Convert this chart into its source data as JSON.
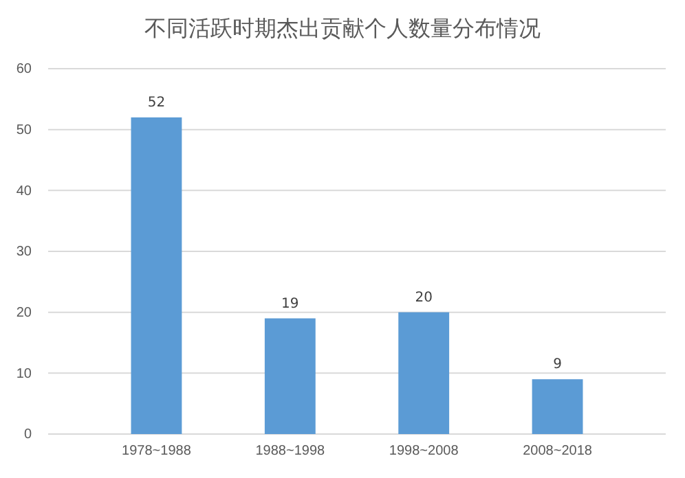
{
  "chart_data": {
    "type": "bar",
    "title": "不同活跃时期杰出贡献个人数量分布情况",
    "categories": [
      "1978~1988",
      "1988~1998",
      "1998~2008",
      "2008~2018"
    ],
    "values": [
      52,
      19,
      20,
      9
    ],
    "color": "#5b9bd5",
    "ylim": [
      0,
      60
    ],
    "yticks": [
      0,
      10,
      20,
      30,
      40,
      50,
      60
    ],
    "grid": "y",
    "data_labels": true
  }
}
